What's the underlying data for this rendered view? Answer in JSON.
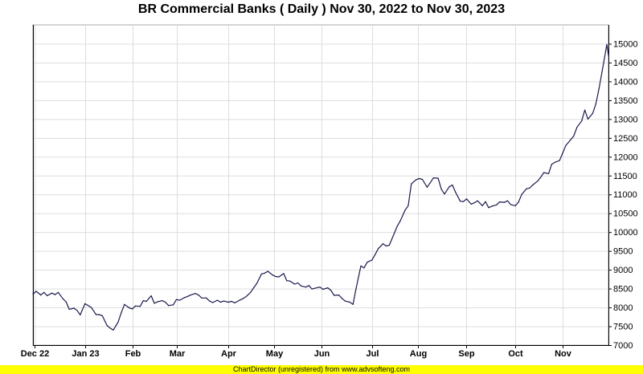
{
  "chart_data": {
    "type": "line",
    "title": "BR Commercial Banks ( Daily ) Nov 30, 2022 to Nov 30, 2023",
    "xlabel": "",
    "ylabel": "",
    "ylim": [
      7000,
      15500
    ],
    "y_ticks": [
      7000,
      7500,
      8000,
      8500,
      9000,
      9500,
      10000,
      10500,
      11000,
      11500,
      12000,
      12500,
      13000,
      13500,
      14000,
      14500,
      15000
    ],
    "x_tick_labels": [
      {
        "label": "Dec 22",
        "date": "2022-12-01"
      },
      {
        "label": "Jan 23",
        "date": "2023-01-02"
      },
      {
        "label": "Feb",
        "date": "2023-02-01"
      },
      {
        "label": "Mar",
        "date": "2023-03-01"
      },
      {
        "label": "Apr",
        "date": "2023-04-03"
      },
      {
        "label": "May",
        "date": "2023-05-02"
      },
      {
        "label": "Jun",
        "date": "2023-06-01"
      },
      {
        "label": "Jul",
        "date": "2023-07-03"
      },
      {
        "label": "Aug",
        "date": "2023-08-01"
      },
      {
        "label": "Sep",
        "date": "2023-09-01"
      },
      {
        "label": "Oct",
        "date": "2023-10-02"
      },
      {
        "label": "Nov",
        "date": "2023-11-01"
      }
    ],
    "grid": true,
    "line_color": "#1a1a4e",
    "series": [
      {
        "name": "",
        "x": [
          "2022-11-30",
          "2022-12-02",
          "2022-12-05",
          "2022-12-07",
          "2022-12-09",
          "2022-12-12",
          "2022-12-14",
          "2022-12-16",
          "2022-12-19",
          "2022-12-21",
          "2022-12-23",
          "2022-12-26",
          "2022-12-28",
          "2022-12-30",
          "2023-01-02",
          "2023-01-04",
          "2023-01-06",
          "2023-01-09",
          "2023-01-11",
          "2023-01-13",
          "2023-01-16",
          "2023-01-18",
          "2023-01-20",
          "2023-01-23",
          "2023-01-25",
          "2023-01-27",
          "2023-01-30",
          "2023-02-01",
          "2023-02-03",
          "2023-02-06",
          "2023-02-08",
          "2023-02-10",
          "2023-02-13",
          "2023-02-15",
          "2023-02-17",
          "2023-02-20",
          "2023-02-22",
          "2023-02-24",
          "2023-02-27",
          "2023-03-01",
          "2023-03-03",
          "2023-03-06",
          "2023-03-08",
          "2023-03-10",
          "2023-03-13",
          "2023-03-15",
          "2023-03-17",
          "2023-03-20",
          "2023-03-22",
          "2023-03-24",
          "2023-03-27",
          "2023-03-29",
          "2023-03-31",
          "2023-04-03",
          "2023-04-05",
          "2023-04-07",
          "2023-04-10",
          "2023-04-12",
          "2023-04-14",
          "2023-04-17",
          "2023-04-19",
          "2023-04-21",
          "2023-04-24",
          "2023-04-26",
          "2023-04-28",
          "2023-05-01",
          "2023-05-03",
          "2023-05-05",
          "2023-05-08",
          "2023-05-10",
          "2023-05-12",
          "2023-05-15",
          "2023-05-17",
          "2023-05-19",
          "2023-05-22",
          "2023-05-24",
          "2023-05-26",
          "2023-05-29",
          "2023-05-31",
          "2023-06-02",
          "2023-06-05",
          "2023-06-07",
          "2023-06-09",
          "2023-06-12",
          "2023-06-14",
          "2023-06-16",
          "2023-06-19",
          "2023-06-21",
          "2023-06-23",
          "2023-06-26",
          "2023-06-28",
          "2023-06-30",
          "2023-07-03",
          "2023-07-05",
          "2023-07-07",
          "2023-07-10",
          "2023-07-12",
          "2023-07-14",
          "2023-07-17",
          "2023-07-19",
          "2023-07-21",
          "2023-07-24",
          "2023-07-26",
          "2023-07-28",
          "2023-07-31",
          "2023-08-02",
          "2023-08-04",
          "2023-08-07",
          "2023-08-09",
          "2023-08-11",
          "2023-08-14",
          "2023-08-16",
          "2023-08-18",
          "2023-08-21",
          "2023-08-23",
          "2023-08-25",
          "2023-08-28",
          "2023-08-30",
          "2023-09-01",
          "2023-09-04",
          "2023-09-06",
          "2023-09-08",
          "2023-09-11",
          "2023-09-13",
          "2023-09-15",
          "2023-09-18",
          "2023-09-20",
          "2023-09-22",
          "2023-09-25",
          "2023-09-27",
          "2023-09-29",
          "2023-10-02",
          "2023-10-04",
          "2023-10-06",
          "2023-10-09",
          "2023-10-11",
          "2023-10-13",
          "2023-10-16",
          "2023-10-18",
          "2023-10-20",
          "2023-10-23",
          "2023-10-25",
          "2023-10-27",
          "2023-10-30",
          "2023-11-01",
          "2023-11-03",
          "2023-11-06",
          "2023-11-08",
          "2023-11-10",
          "2023-11-13",
          "2023-11-15",
          "2023-11-17",
          "2023-11-20",
          "2023-11-22",
          "2023-11-24",
          "2023-11-27",
          "2023-11-29",
          "2023-11-30"
        ],
        "values": [
          8350,
          8430,
          8330,
          8400,
          8310,
          8380,
          8340,
          8400,
          8230,
          8150,
          7950,
          7980,
          7920,
          7800,
          8100,
          8050,
          8000,
          7810,
          7810,
          7780,
          7520,
          7450,
          7400,
          7610,
          7860,
          8080,
          7990,
          7960,
          8040,
          8030,
          8180,
          8160,
          8310,
          8110,
          8150,
          8180,
          8140,
          8050,
          8070,
          8210,
          8190,
          8260,
          8290,
          8330,
          8370,
          8330,
          8250,
          8250,
          8170,
          8130,
          8190,
          8140,
          8170,
          8140,
          8160,
          8120,
          8190,
          8230,
          8280,
          8400,
          8520,
          8640,
          8890,
          8910,
          8960,
          8860,
          8820,
          8810,
          8900,
          8710,
          8700,
          8620,
          8650,
          8570,
          8540,
          8580,
          8490,
          8520,
          8540,
          8480,
          8520,
          8450,
          8320,
          8330,
          8240,
          8170,
          8140,
          8080,
          8510,
          9100,
          9050,
          9200,
          9260,
          9400,
          9560,
          9690,
          9630,
          9650,
          9950,
          10150,
          10300,
          10580,
          10700,
          11280,
          11390,
          11420,
          11400,
          11190,
          11310,
          11440,
          11430,
          11140,
          11010,
          11200,
          11250,
          11060,
          10820,
          10810,
          10880,
          10740,
          10780,
          10830,
          10700,
          10810,
          10650,
          10700,
          10720,
          10800,
          10790,
          10830,
          10730,
          10700,
          10800,
          11000,
          11150,
          11170,
          11250,
          11350,
          11450,
          11580,
          11550,
          11800,
          11850,
          11900,
          12100,
          12300,
          12450,
          12550,
          12780,
          12950,
          13240,
          13000,
          13150,
          13400,
          13800,
          14500,
          14980,
          14700
        ]
      }
    ]
  },
  "footer_text": "ChartDirector (unregistered) from www.advsofteng.com",
  "colors": {
    "plot_background": "#ffffff",
    "grid": "#dddddd",
    "axis": "#000000",
    "footer_background": "#ffff00"
  }
}
